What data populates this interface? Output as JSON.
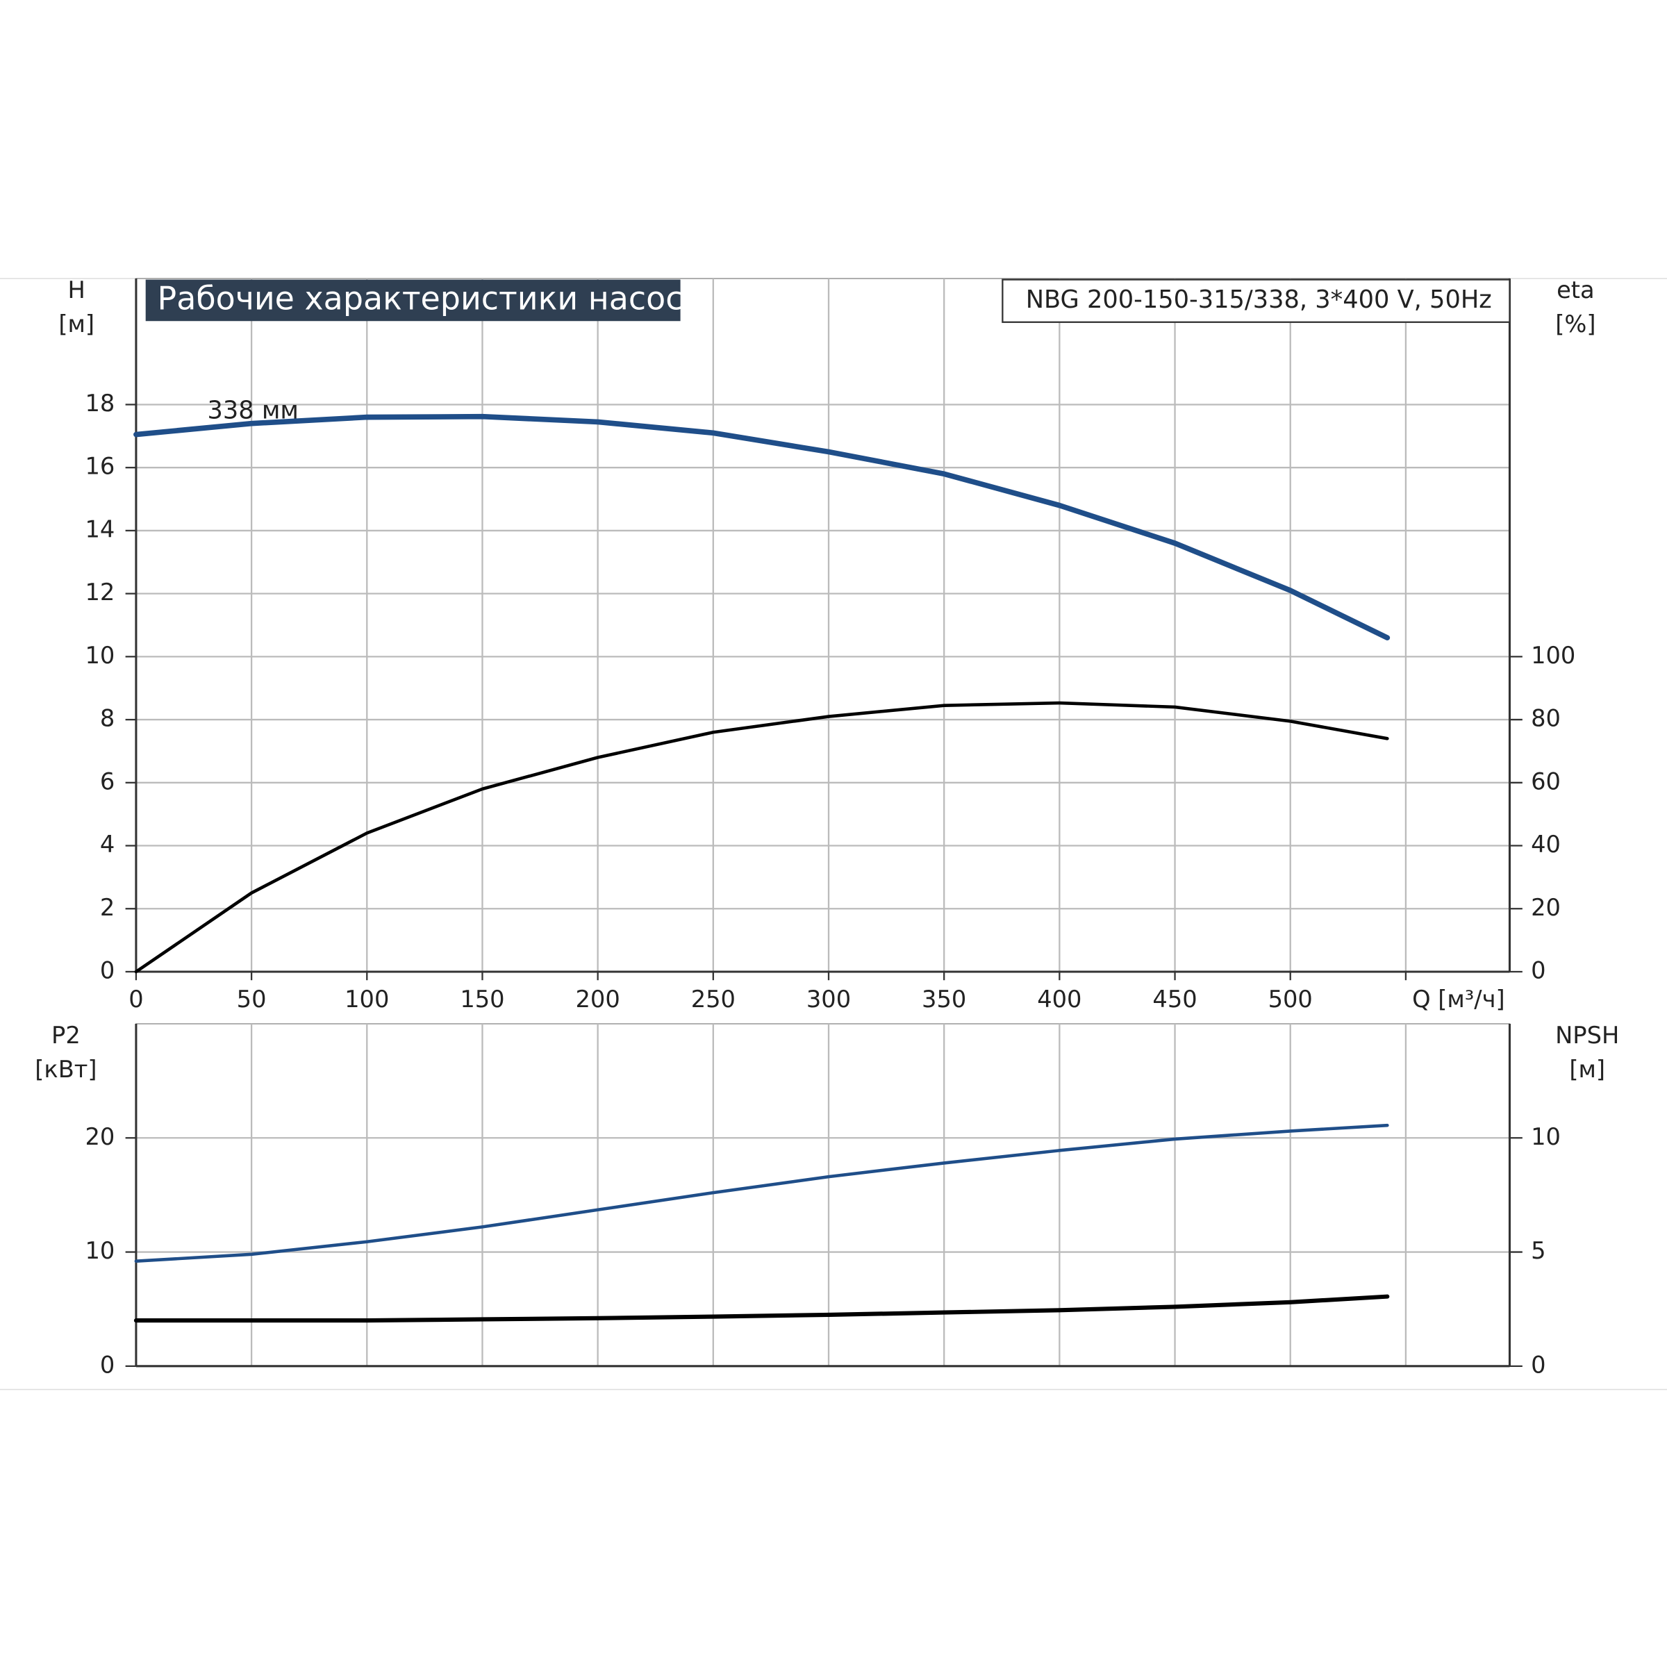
{
  "chart_data": [
    {
      "type": "line",
      "title": "Рабочие характеристики насоса",
      "subtitle": "NBG 200-150-315/338, 3*400 V, 50Hz",
      "annotation": "338 мм",
      "ylabel": [
        "H",
        "[м]"
      ],
      "y2label": [
        "eta",
        "[%]"
      ],
      "x": [
        0,
        50,
        100,
        150,
        200,
        250,
        300,
        350,
        400,
        450,
        500,
        542
      ],
      "xlim": [
        0,
        595
      ],
      "xticks": [
        0,
        50,
        100,
        150,
        200,
        250,
        300,
        350,
        400,
        450,
        500,
        {
          "value": 550,
          "label": "Q [м³/ч]"
        }
      ],
      "ylim": [
        0,
        22
      ],
      "yticks": [
        0,
        2,
        4,
        6,
        8,
        10,
        12,
        14,
        16,
        18
      ],
      "y2lim": [
        0,
        220
      ],
      "y2ticks": [
        0,
        20,
        40,
        60,
        80,
        100
      ],
      "grid": true,
      "series": [
        {
          "color": "#1f4e89",
          "values": [
            17.05,
            17.4,
            17.6,
            17.62,
            17.45,
            17.1,
            16.5,
            15.8,
            14.8,
            13.6,
            12.1,
            10.6
          ]
        },
        {
          "color": "#000000",
          "axis": "y2",
          "values": [
            0,
            25,
            44,
            58,
            68,
            76,
            81,
            84.5,
            85.3,
            84,
            79.5,
            74
          ]
        }
      ]
    },
    {
      "type": "line",
      "ylabel": [
        "P2",
        "[кВт]"
      ],
      "y2label": [
        "NPSH",
        "[м]"
      ],
      "x": [
        0,
        50,
        100,
        150,
        200,
        250,
        300,
        350,
        400,
        450,
        500,
        542
      ],
      "xlim": [
        0,
        595
      ],
      "ylim": [
        0,
        30
      ],
      "yticks": [
        0,
        10,
        20
      ],
      "y2lim": [
        0,
        15
      ],
      "y2ticks": [
        0,
        5,
        10
      ],
      "grid": true,
      "series": [
        {
          "color": "#1f4e89",
          "values": [
            9.2,
            9.8,
            10.9,
            12.2,
            13.7,
            15.2,
            16.6,
            17.8,
            18.9,
            19.9,
            20.6,
            21.1
          ]
        },
        {
          "color": "#000000",
          "axis": "y2",
          "values": [
            2.0,
            2.0,
            2.0,
            2.05,
            2.1,
            2.17,
            2.25,
            2.35,
            2.45,
            2.6,
            2.8,
            3.05
          ]
        }
      ]
    }
  ]
}
